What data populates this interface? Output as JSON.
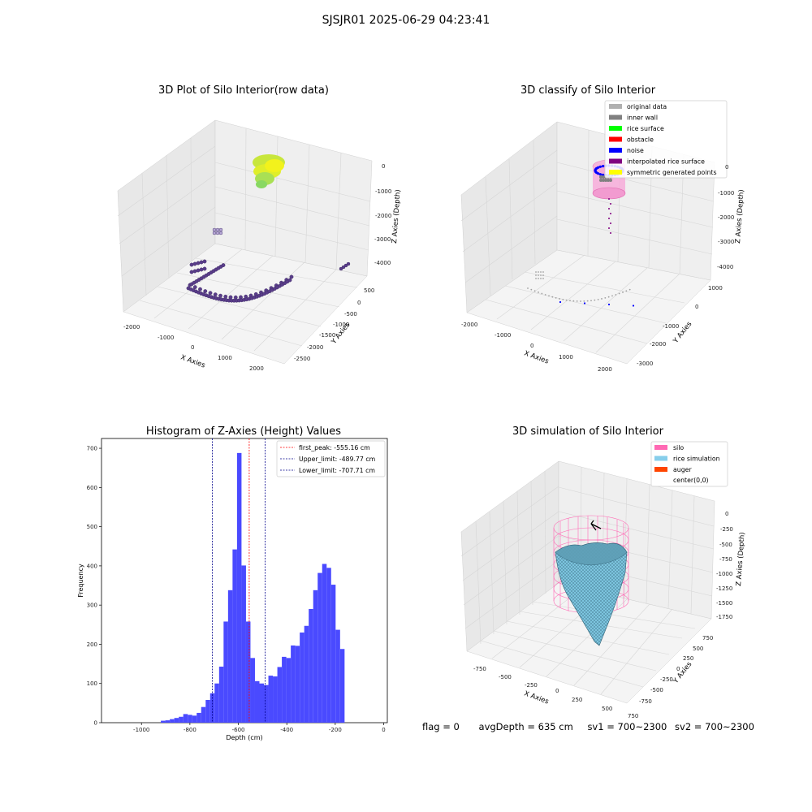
{
  "suptitle": "SJSJR01 2025-06-29 04:23:41",
  "panels": {
    "raw": {
      "title": "3D Plot of Silo Interior(row data)",
      "xlabel": "X Axies",
      "ylabel": "Y Axies",
      "zlabel": "Z Axies (Depth)",
      "xticks": [
        "-2000",
        "-1000",
        "0",
        "1000",
        "2000"
      ],
      "yticks": [
        "500",
        "0",
        "-500",
        "-1000",
        "-1500",
        "-2000",
        "-2500"
      ],
      "zticks": [
        "0",
        "-1000",
        "-2000",
        "-3000",
        "-4000"
      ]
    },
    "classify": {
      "title": "3D classify of Silo Interior",
      "xlabel": "X Axies",
      "ylabel": "Y Axies",
      "zlabel": "Z Axies (Depth)",
      "xticks": [
        "-2000",
        "-1000",
        "0",
        "1000",
        "2000"
      ],
      "yticks": [
        "1000",
        "0",
        "-1000",
        "-2000",
        "-3000"
      ],
      "zticks": [
        "0",
        "-1000",
        "-2000",
        "-3000",
        "-4000"
      ],
      "legend": [
        {
          "label": "original data",
          "color": "#b0b0b0"
        },
        {
          "label": "inner wall",
          "color": "#808080"
        },
        {
          "label": "rice surface",
          "color": "#00ff00"
        },
        {
          "label": "obstacle",
          "color": "#ff0000"
        },
        {
          "label": "noise",
          "color": "#0000ff"
        },
        {
          "label": "interpolated rice surface",
          "color": "#800080"
        },
        {
          "label": "symmetric generated points",
          "color": "#ffff00"
        }
      ]
    },
    "simulation": {
      "title": "3D simulation of Silo Interior",
      "xlabel": "X Axies",
      "ylabel": "Y Axies",
      "zlabel": "Z Axies (Depth)",
      "xticks": [
        "-750",
        "-500",
        "-250",
        "0",
        "250",
        "500",
        "750"
      ],
      "yticks": [
        "750",
        "500",
        "250",
        "0",
        "-250",
        "-500",
        "-750"
      ],
      "zticks": [
        "0",
        "-250",
        "-500",
        "-750",
        "-1000",
        "-1250",
        "-1500",
        "-1750"
      ],
      "legend": [
        {
          "label": "silo",
          "color": "#ff69b4"
        },
        {
          "label": "rice simulation",
          "color": "#87ceeb"
        },
        {
          "label": "auger",
          "color": "#ff4500"
        },
        {
          "label": "center(0,0)",
          "color": "#ffffff"
        }
      ]
    }
  },
  "chart_data": {
    "type": "bar",
    "title": "Histogram of Z-Axies (Height) Values",
    "xlabel": "Depth (cm)",
    "ylabel": "Frequency",
    "xlim": [
      -1165,
      15
    ],
    "ylim": [
      0,
      725
    ],
    "xticks": [
      -1000,
      -800,
      -600,
      -400,
      -200,
      0
    ],
    "yticks": [
      0,
      100,
      200,
      300,
      400,
      500,
      600,
      700
    ],
    "bar_color": "#4a4aff",
    "bin_width": 18.5,
    "bins": [
      {
        "x": -920,
        "value": 5
      },
      {
        "x": -901.5,
        "value": 6
      },
      {
        "x": -883,
        "value": 9
      },
      {
        "x": -864.5,
        "value": 12
      },
      {
        "x": -846,
        "value": 15
      },
      {
        "x": -827.5,
        "value": 22
      },
      {
        "x": -809,
        "value": 20
      },
      {
        "x": -790.5,
        "value": 18
      },
      {
        "x": -772,
        "value": 25
      },
      {
        "x": -753.5,
        "value": 40
      },
      {
        "x": -735,
        "value": 58
      },
      {
        "x": -716.5,
        "value": 75
      },
      {
        "x": -698,
        "value": 100
      },
      {
        "x": -679.5,
        "value": 143
      },
      {
        "x": -661,
        "value": 258
      },
      {
        "x": -642.5,
        "value": 338
      },
      {
        "x": -624,
        "value": 442
      },
      {
        "x": -605.5,
        "value": 688
      },
      {
        "x": -587,
        "value": 401
      },
      {
        "x": -568.5,
        "value": 258
      },
      {
        "x": -550,
        "value": 165
      },
      {
        "x": -531.5,
        "value": 106
      },
      {
        "x": -513,
        "value": 100
      },
      {
        "x": -494.5,
        "value": 96
      },
      {
        "x": -476,
        "value": 120
      },
      {
        "x": -457.5,
        "value": 118
      },
      {
        "x": -439,
        "value": 142
      },
      {
        "x": -420.5,
        "value": 168
      },
      {
        "x": -402,
        "value": 165
      },
      {
        "x": -383.5,
        "value": 197
      },
      {
        "x": -365,
        "value": 196
      },
      {
        "x": -346.5,
        "value": 230
      },
      {
        "x": -328,
        "value": 247
      },
      {
        "x": -309.5,
        "value": 290
      },
      {
        "x": -291,
        "value": 338
      },
      {
        "x": -272.5,
        "value": 382
      },
      {
        "x": -254,
        "value": 405
      },
      {
        "x": -235.5,
        "value": 395
      },
      {
        "x": -217,
        "value": 352
      },
      {
        "x": -198.5,
        "value": 237
      },
      {
        "x": -180,
        "value": 188
      }
    ],
    "lines": [
      {
        "x": -555.16,
        "color": "#ff0000",
        "label": "first_peak: -555.16 cm"
      },
      {
        "x": -489.77,
        "color": "#00008b",
        "label": "Upper_limit: -489.77 cm"
      },
      {
        "x": -707.71,
        "color": "#00008b",
        "label": "Lower_limit: -707.71 cm"
      }
    ]
  },
  "status": {
    "flag": "flag = 0",
    "avg_depth": "avgDepth = 635 cm",
    "sv1": "sv1 = 700~2300",
    "sv2": "sv2 = 700~2300"
  }
}
